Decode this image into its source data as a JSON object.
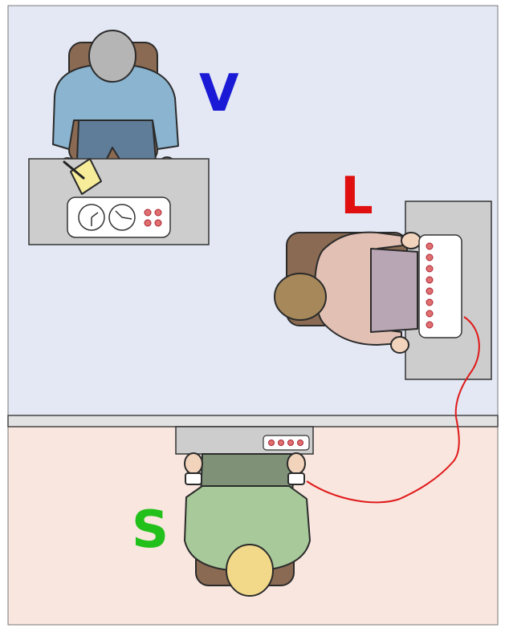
{
  "labels": {
    "experimenter": "V",
    "learner": "L",
    "subject": "S"
  },
  "colors": {
    "experimenter_label": "#1a1ad6",
    "learner_label": "#e01010",
    "subject_label": "#22c01a",
    "upper_room": "#e3e8f4",
    "lower_room": "#f8e6df",
    "wall": "#e2e2e2",
    "desk": "#cdcdcd",
    "wire": "#e01a1a",
    "button": "#e07070",
    "chair": "#8a6a52"
  },
  "panels": {
    "experimenter_buttons": 4,
    "learner_buttons": 8,
    "subject_buttons": 4
  }
}
